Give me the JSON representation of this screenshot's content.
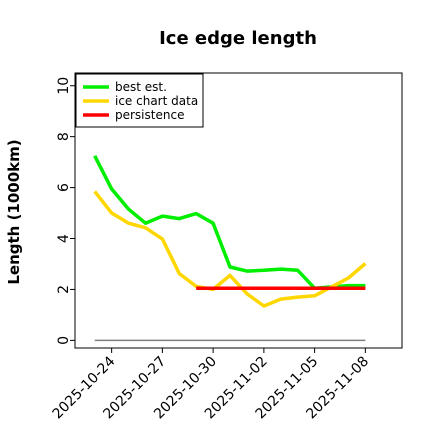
{
  "chart_data": {
    "type": "line",
    "title": "Ice edge length",
    "xlabel": "",
    "ylabel": "Length (1000km)",
    "ylim": [
      -0.3,
      10.5
    ],
    "xlim": [
      "2025-10-21T20:00",
      "2025-11-10T04:00"
    ],
    "y_ticks": [
      0,
      2,
      4,
      6,
      8,
      10
    ],
    "x_ticks": [
      "2025-10-24",
      "2025-10-27",
      "2025-10-30",
      "2025-11-02",
      "2025-11-05",
      "2025-11-08"
    ],
    "grid": false,
    "legend_position": "top-left",
    "zero_line": {
      "y": 0,
      "x_from": "2025-10-23",
      "x_to": "2025-11-08",
      "color": "#808080"
    },
    "series": [
      {
        "name": "best est.",
        "color": "#00ee00",
        "x": [
          "2025-10-23",
          "2025-10-24",
          "2025-10-25",
          "2025-10-26",
          "2025-10-27",
          "2025-10-28",
          "2025-10-29",
          "2025-10-30",
          "2025-10-31",
          "2025-11-01",
          "2025-11-02",
          "2025-11-03",
          "2025-11-04",
          "2025-11-05",
          "2025-11-06",
          "2025-11-07",
          "2025-11-08"
        ],
        "values": [
          7.25,
          5.95,
          5.15,
          4.6,
          4.88,
          4.78,
          4.98,
          4.6,
          2.88,
          2.72,
          2.75,
          2.8,
          2.75,
          2.05,
          2.1,
          2.15,
          2.15
        ]
      },
      {
        "name": "ice chart data",
        "color": "#ffd700",
        "x": [
          "2025-10-23",
          "2025-10-24",
          "2025-10-25",
          "2025-10-26",
          "2025-10-27",
          "2025-10-28",
          "2025-10-29",
          "2025-10-30",
          "2025-10-31",
          "2025-11-01",
          "2025-11-02",
          "2025-11-03",
          "2025-11-04",
          "2025-11-05",
          "2025-11-06",
          "2025-11-07",
          "2025-11-08"
        ],
        "values": [
          5.85,
          5.0,
          4.6,
          4.42,
          3.98,
          2.62,
          2.12,
          2.0,
          2.55,
          1.83,
          1.35,
          1.62,
          1.7,
          1.75,
          2.1,
          2.45,
          3.02
        ]
      },
      {
        "name": "persistence",
        "color": "#ff0000",
        "x": [
          "2025-10-29",
          "2025-11-08"
        ],
        "values": [
          2.05,
          2.05
        ]
      }
    ]
  }
}
